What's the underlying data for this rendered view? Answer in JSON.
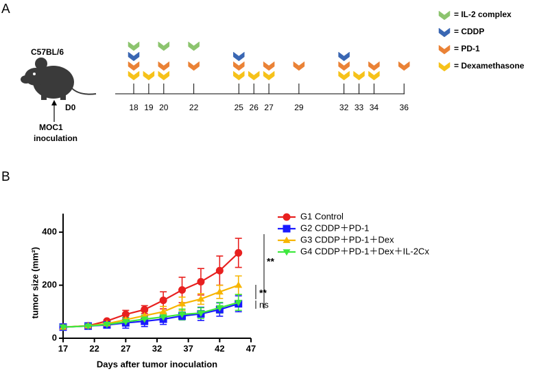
{
  "panel_a": {
    "label": "A",
    "strain": "C57BL/6",
    "start_day": "D0",
    "inoculation": [
      "MOC1",
      "inoculation"
    ],
    "timeline_days": [
      18,
      19,
      20,
      22,
      25,
      26,
      27,
      29,
      32,
      33,
      34,
      36
    ],
    "treatments": [
      {
        "label": "= IL-2 complex",
        "color": "#8cc46e",
        "days": [
          18,
          20,
          22
        ]
      },
      {
        "label": "= CDDP",
        "color": "#3a67b3",
        "days": [
          18,
          25,
          32
        ]
      },
      {
        "label": "= PD-1",
        "color": "#ea8236",
        "days": [
          18,
          20,
          22,
          25,
          27,
          29,
          32,
          34,
          36
        ]
      },
      {
        "label": "= Dexamethasone",
        "color": "#f6c21a",
        "days": [
          18,
          19,
          20,
          25,
          26,
          27,
          32,
          33,
          34
        ]
      }
    ]
  },
  "chart_data": {
    "type": "line",
    "panel_label": "B",
    "x_label": "Days after  tumor inoculation",
    "y_label": "tumor size (mm²)",
    "x": [
      17,
      21,
      24,
      27,
      30,
      33,
      36,
      39,
      42,
      45
    ],
    "xlim": [
      17,
      47
    ],
    "xticks": [
      17,
      22,
      27,
      32,
      37,
      42,
      47
    ],
    "ylim": [
      0,
      470
    ],
    "yticks": [
      0,
      200,
      400
    ],
    "series": [
      {
        "name": "G1 Control",
        "color": "#e8201f",
        "marker": "circle",
        "values": [
          42,
          47,
          65,
          90,
          108,
          143,
          182,
          213,
          255,
          322
        ],
        "errors": [
          3,
          4,
          5,
          15,
          15,
          32,
          48,
          50,
          55,
          55
        ]
      },
      {
        "name": "G2 CDDP＋PD-1",
        "color": "#1a1aff",
        "marker": "square",
        "values": [
          42,
          46,
          50,
          58,
          64,
          72,
          84,
          92,
          108,
          130
        ],
        "errors": [
          3,
          5,
          8,
          20,
          20,
          20,
          15,
          25,
          25,
          30
        ]
      },
      {
        "name": "G3 CDDP＋PD-1＋Dex",
        "color": "#f7b500",
        "marker": "triangle",
        "values": [
          42,
          47,
          55,
          70,
          85,
          100,
          130,
          148,
          175,
          200
        ],
        "errors": [
          3,
          5,
          8,
          15,
          15,
          20,
          25,
          20,
          25,
          35
        ]
      },
      {
        "name": "G4 CDDP＋PD-1＋Dex＋IL-2Cx",
        "color": "#3ee83e",
        "marker": "triangle-down",
        "values": [
          42,
          46,
          52,
          62,
          72,
          80,
          90,
          95,
          115,
          135
        ],
        "errors": [
          3,
          5,
          8,
          15,
          15,
          15,
          20,
          20,
          20,
          30
        ]
      }
    ],
    "annotations": [
      "**",
      "**",
      "ns"
    ]
  }
}
